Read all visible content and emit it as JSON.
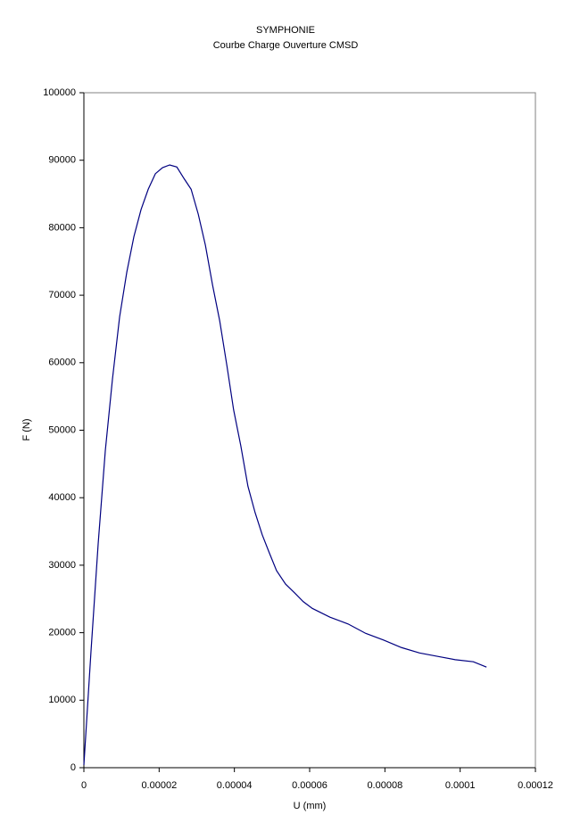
{
  "chart_data": {
    "type": "line",
    "title": "SYMPHONIE",
    "subtitle": "Courbe Charge Ouverture CMSD",
    "xlabel": "U (mm)",
    "ylabel": "F (N)",
    "x": [
      0,
      1.9e-06,
      3.8e-06,
      5.7e-06,
      7.6e-06,
      9.5e-06,
      1.14e-05,
      1.33e-05,
      1.52e-05,
      1.71e-05,
      1.9e-05,
      2.09e-05,
      2.28e-05,
      2.47e-05,
      2.66e-05,
      2.85e-05,
      3.04e-05,
      3.23e-05,
      3.42e-05,
      3.61e-05,
      3.8e-05,
      3.98e-05,
      4.17e-05,
      4.36e-05,
      4.55e-05,
      4.74e-05,
      4.93e-05,
      5.12e-05,
      5.36e-05,
      5.6e-05,
      5.83e-05,
      6.07e-05,
      6.54e-05,
      7.02e-05,
      7.49e-05,
      7.97e-05,
      8.44e-05,
      8.92e-05,
      9.39e-05,
      9.87e-05,
      0.0001035,
      0.000107
    ],
    "series": [
      {
        "name": "F",
        "color": "#000080",
        "values": [
          400,
          17300,
          33200,
          47000,
          57600,
          66800,
          73400,
          78700,
          82700,
          85700,
          88000,
          88900,
          89300,
          89000,
          87300,
          85700,
          82000,
          77400,
          71500,
          66200,
          59600,
          53000,
          47700,
          41700,
          37800,
          34500,
          31800,
          29200,
          27200,
          25900,
          24600,
          23600,
          22300,
          21300,
          19900,
          18900,
          17800,
          17000,
          16500,
          16000,
          15700,
          14900
        ]
      }
    ],
    "xlim": [
      0,
      0.00012
    ],
    "xticks": [
      0,
      2e-05,
      4e-05,
      6e-05,
      8e-05,
      0.0001,
      0.00012
    ],
    "ylim": [
      0,
      100000
    ],
    "yticks": [
      0,
      10000,
      20000,
      30000,
      40000,
      50000,
      60000,
      70000,
      80000,
      90000,
      100000
    ],
    "grid": false
  }
}
